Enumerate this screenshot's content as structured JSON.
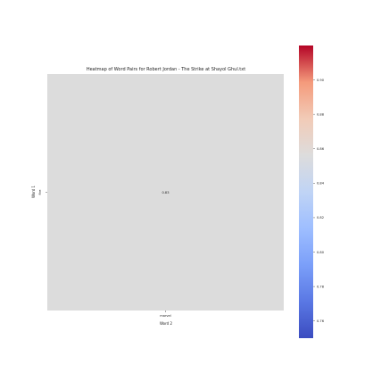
{
  "chart_data": {
    "type": "heatmap",
    "title": "Heatmap of Word Pairs for Robert Jordan - The Strike at Shayol Ghul.txt",
    "xlabel": "Word 2",
    "ylabel": "Word 1",
    "x_categories": [
      "marvel"
    ],
    "y_categories": [
      "fire"
    ],
    "values": [
      [
        0.83
      ]
    ],
    "annotations": [
      [
        "0.83"
      ]
    ],
    "colorbar": {
      "colormap": "coolwarm",
      "min": 0.75,
      "max": 0.92,
      "ticks": [
        0.76,
        0.78,
        0.8,
        0.82,
        0.84,
        0.86,
        0.88,
        0.9
      ],
      "tick_labels": [
        "0.76",
        "0.78",
        "0.80",
        "0.82",
        "0.84",
        "0.86",
        "0.88",
        "0.90"
      ]
    },
    "colors": {
      "cell": "#dcdcdc"
    }
  }
}
